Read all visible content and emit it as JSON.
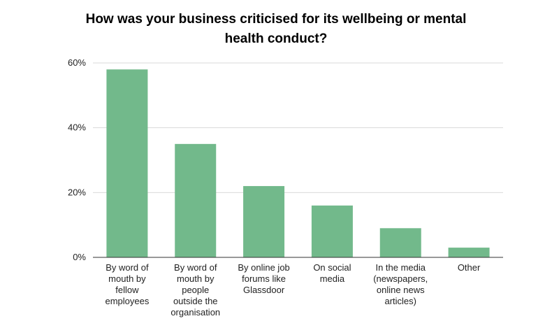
{
  "chart_data": {
    "type": "bar",
    "title_lines": [
      "How was your business criticised for its wellbeing or mental",
      "health conduct?"
    ],
    "categories": [
      [
        "By word of",
        "mouth by",
        "fellow",
        "employees"
      ],
      [
        "By word of",
        "mouth by",
        "people",
        "outside the",
        "organisation"
      ],
      [
        "By online job",
        "forums like",
        "Glassdoor"
      ],
      [
        "On social",
        "media"
      ],
      [
        "In the media",
        "(newspapers,",
        "online news",
        "articles)"
      ],
      [
        "Other"
      ]
    ],
    "values": [
      58,
      35,
      22,
      16,
      9,
      3
    ],
    "ylim": [
      0,
      60
    ],
    "yticks": [
      0,
      20,
      40,
      60
    ],
    "ytick_labels": [
      "0%",
      "20%",
      "40%",
      "60%"
    ],
    "grid": true,
    "colors": {
      "bar": "#72b98b",
      "grid": "#d9d9d9",
      "axis": "#333333"
    }
  }
}
